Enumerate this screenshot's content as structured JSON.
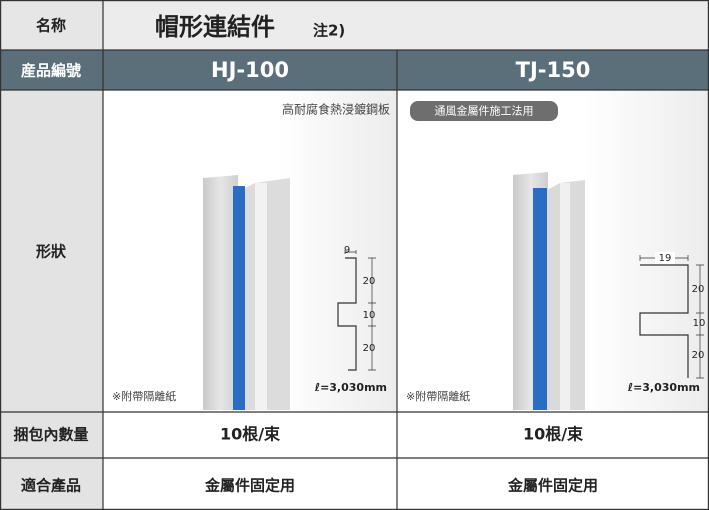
{
  "header": {
    "label": "名称",
    "title": "帽形連結件",
    "note": "注2)"
  },
  "product_row": {
    "label": "産品編號",
    "products": [
      "HJ-100",
      "TJ-150"
    ]
  },
  "shape_row": {
    "label": "形狀",
    "products": [
      {
        "material": "高耐腐食熱浸鍍鋼板",
        "note": "※附帶隔離紙",
        "length": "ℓ=3,030mm",
        "dims": [
          "9",
          "20",
          "10",
          "20"
        ]
      },
      {
        "badge": "通風金屬件施工法用",
        "note": "※附帶隔離紙",
        "length": "ℓ=3,030mm",
        "dims": [
          "19",
          "20",
          "10",
          "20"
        ]
      }
    ]
  },
  "bundle_row": {
    "label": "捆包內數量",
    "values": [
      "10根/束",
      "10根/束"
    ]
  },
  "usage_row": {
    "label": "適合產品",
    "values": [
      "金屬件固定用",
      "金屬件固定用"
    ]
  }
}
